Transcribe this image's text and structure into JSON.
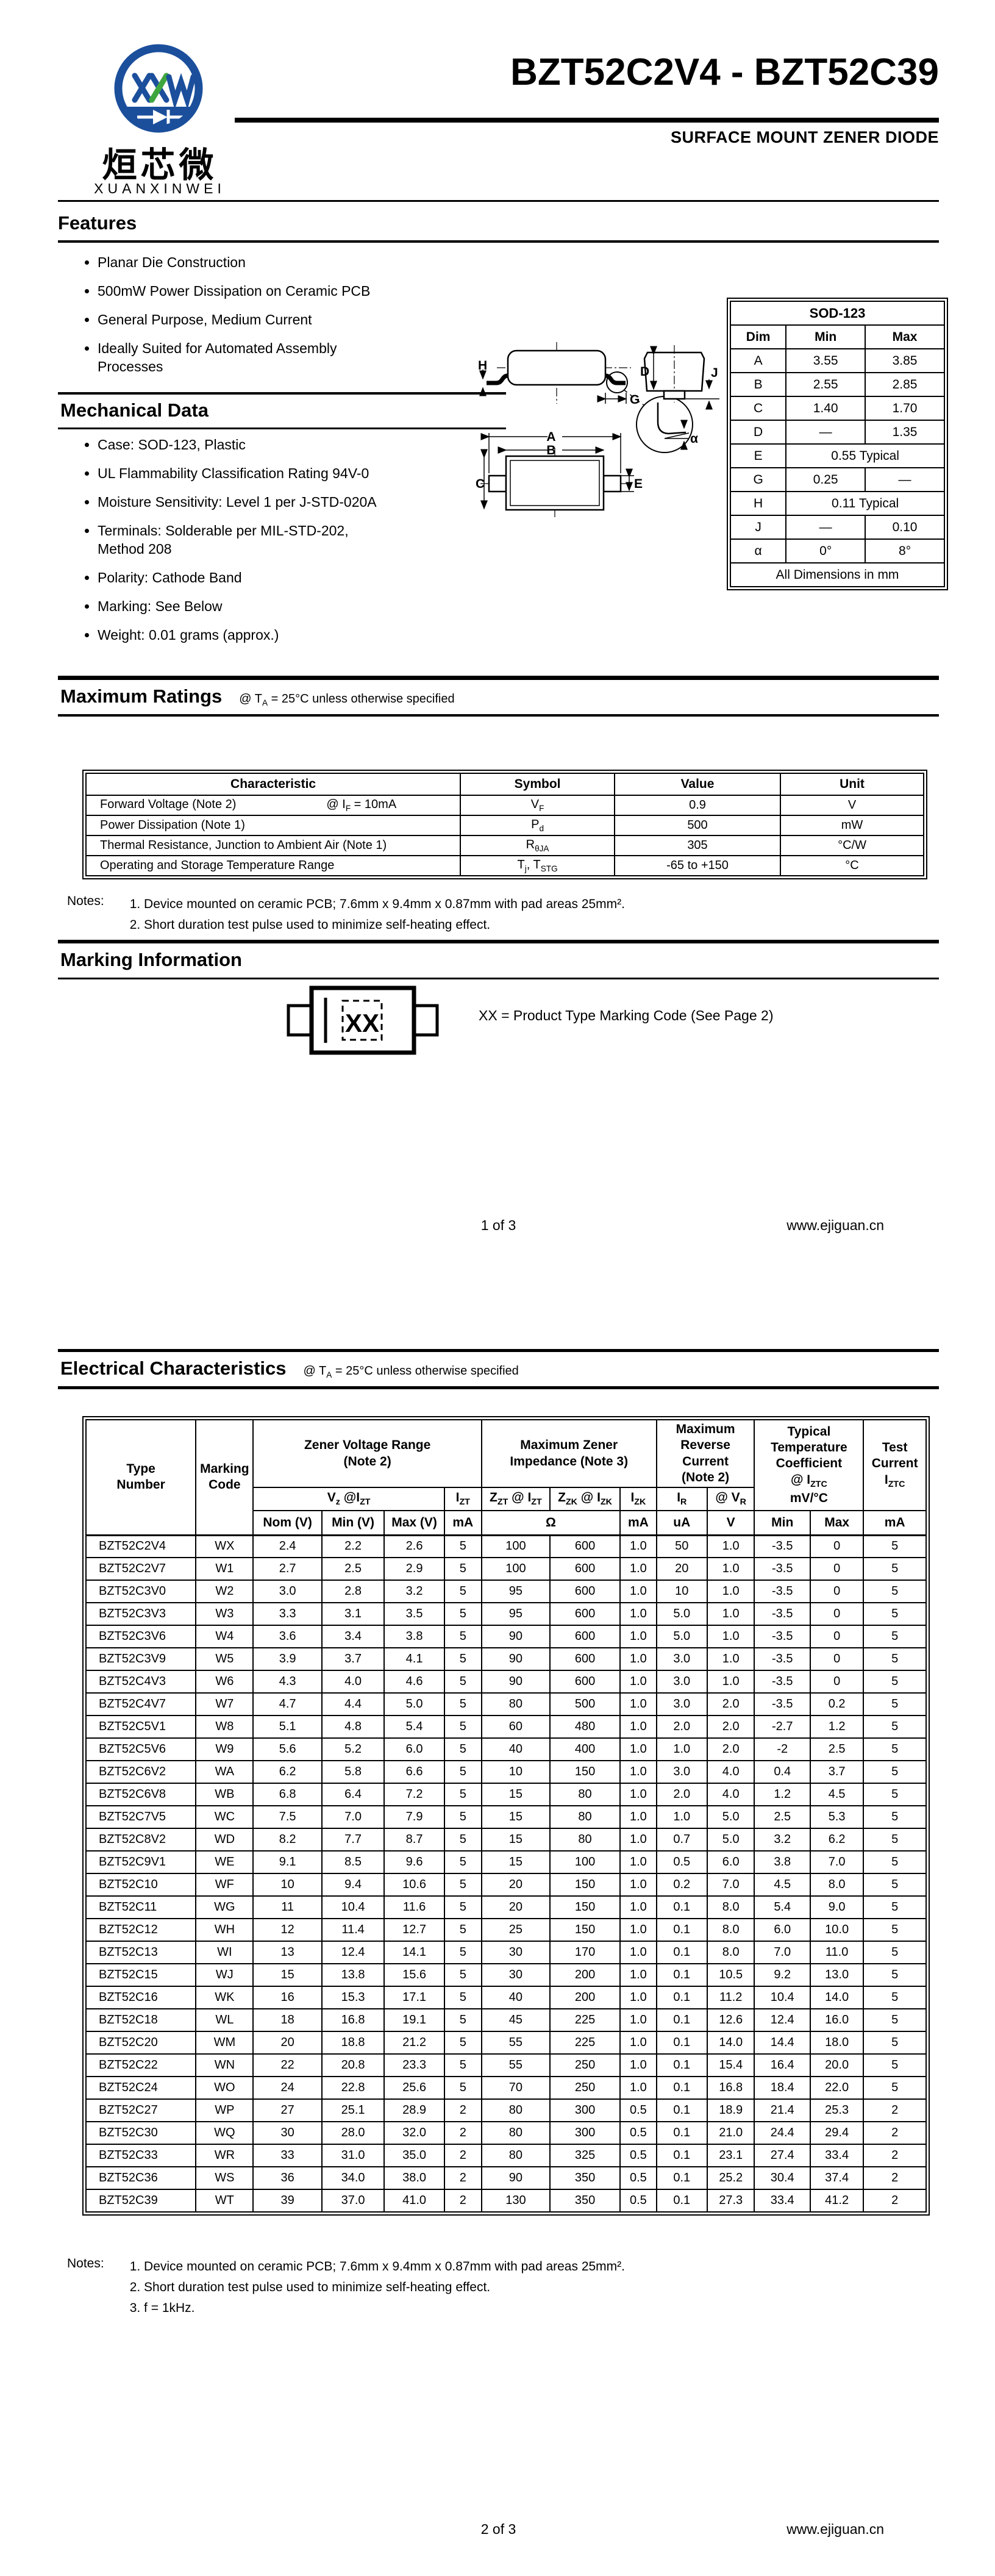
{
  "doc": {
    "title": "BZT52C2V4 - BZT52C39",
    "subtitle": "SURFACE MOUNT ZENER DIODE",
    "logo": {
      "chinese": "烜芯微",
      "latin": "XUANXINWEI",
      "blue": "#1b4f9c",
      "green": "#3fa63f"
    },
    "condition": [
      {
        "t": "@ T"
      },
      {
        "t": "A",
        "s": 1
      },
      {
        "t": " = 25°C unless otherwise specified"
      }
    ]
  },
  "features": {
    "heading": "Features",
    "items": [
      [
        "Planar Die Construction"
      ],
      [
        "500mW Power Dissipation on Ceramic PCB"
      ],
      [
        "General Purpose, Medium Current"
      ],
      [
        "Ideally Suited for Automated Assembly",
        "Processes"
      ]
    ]
  },
  "mechanical": {
    "heading": "Mechanical Data",
    "items": [
      [
        "Case: SOD-123, Plastic"
      ],
      [
        "UL Flammability Classification Rating 94V-0"
      ],
      [
        "Moisture Sensitivity: Level 1 per J-STD-020A"
      ],
      [
        "Terminals: Solderable per MIL-STD-202,",
        "Method 208"
      ],
      [
        "Polarity: Cathode Band"
      ],
      [
        "Marking: See Below"
      ],
      [
        "Weight: 0.01 grams (approx.)"
      ]
    ]
  },
  "package": {
    "title": "SOD-123",
    "headers": [
      "Dim",
      "Min",
      "Max"
    ],
    "rows": [
      [
        "A",
        "3.55",
        "3.85"
      ],
      [
        "B",
        "2.55",
        "2.85"
      ],
      [
        "C",
        "1.40",
        "1.70"
      ],
      [
        "D",
        "—",
        "1.35"
      ],
      [
        "E",
        "0.55 Typical"
      ],
      [
        "G",
        "0.25",
        "—"
      ],
      [
        "H",
        "0.11 Typical"
      ],
      [
        "J",
        "—",
        "0.10"
      ],
      [
        "α",
        "0°",
        "8°"
      ]
    ],
    "footer": "All Dimensions in mm",
    "labels": {
      "a": "A",
      "b": "B",
      "c": "C",
      "d": "D",
      "e": "E",
      "g": "G",
      "h": "H",
      "j": "J",
      "alpha": "α"
    }
  },
  "max_ratings": {
    "heading": "Maximum Ratings",
    "headers": [
      "Characteristic",
      "Symbol",
      "Value",
      "Unit"
    ],
    "rows": [
      {
        "name": "Forward Voltage (Note 2)",
        "cond": [
          {
            "t": "@ I"
          },
          {
            "t": "F",
            "s": 1
          },
          {
            "t": " = 10mA"
          }
        ],
        "sym": [
          {
            "t": "V"
          },
          {
            "t": "F",
            "s": 1
          }
        ],
        "value": "0.9",
        "unit": "V"
      },
      {
        "name": "Power Dissipation (Note 1)",
        "cond": [],
        "sym": [
          {
            "t": "P"
          },
          {
            "t": "d",
            "s": 1
          }
        ],
        "value": "500",
        "unit": "mW"
      },
      {
        "name": "Thermal Resistance, Junction to Ambient Air (Note 1)",
        "cond": [],
        "sym": [
          {
            "t": "R"
          },
          {
            "t": "θJA",
            "s": 1
          }
        ],
        "value": "305",
        "unit": "°C/W"
      },
      {
        "name": "Operating and Storage Temperature Range",
        "cond": [],
        "sym": [
          {
            "t": "T"
          },
          {
            "t": "j",
            "s": 1
          },
          {
            "t": ", T"
          },
          {
            "t": "STG",
            "s": 1
          }
        ],
        "value": "-65 to +150",
        "unit": "°C"
      }
    ],
    "notes_label": "Notes:",
    "notes": [
      "1. Device mounted on ceramic PCB; 7.6mm x 9.4mm x 0.87mm with pad areas 25mm².",
      "2. Short duration test pulse used to minimize self-heating effect."
    ]
  },
  "marking": {
    "heading": "Marking Information",
    "code": "XX",
    "legend": "XX = Product Type Marking Code (See Page 2)"
  },
  "electrical": {
    "heading": "Electrical Characteristics",
    "header": {
      "type_number": [
        {
          "t": "Type"
        },
        {
          "br": 1
        },
        {
          "t": "Number"
        }
      ],
      "marking_code": [
        {
          "t": "Marking"
        },
        {
          "br": 1
        },
        {
          "t": "Code"
        }
      ],
      "zener_range": [
        {
          "t": "Zener Voltage Range"
        },
        {
          "br": 1
        },
        {
          "t": "(Note 2)"
        }
      ],
      "impedance": [
        {
          "t": "Maximum Zener"
        },
        {
          "br": 1
        },
        {
          "t": "Impedance (Note 3)"
        }
      ],
      "reverse": [
        {
          "t": "Maximum"
        },
        {
          "br": 1
        },
        {
          "t": "Reverse"
        },
        {
          "br": 1
        },
        {
          "t": "Current"
        },
        {
          "br": 1
        },
        {
          "t": "(Note 2)"
        }
      ],
      "temp_coeff": [
        {
          "t": "Typical"
        },
        {
          "br": 1
        },
        {
          "t": "Temperature"
        },
        {
          "br": 1
        },
        {
          "t": "Coefficient"
        },
        {
          "br": 1
        },
        {
          "t": "@ I"
        },
        {
          "t": "ZTC",
          "s": 1
        },
        {
          "br": 1
        },
        {
          "t": "mV/°C"
        }
      ],
      "test_current": [
        {
          "t": "Test"
        },
        {
          "br": 1
        },
        {
          "t": "Current"
        },
        {
          "br": 1
        },
        {
          "t": "I"
        },
        {
          "t": "ZTC",
          "s": 1
        }
      ],
      "vz": [
        {
          "t": "V"
        },
        {
          "t": "z",
          "s": 1
        },
        {
          "t": " @I"
        },
        {
          "t": "ZT",
          "s": 1
        }
      ],
      "izt": [
        {
          "t": "I"
        },
        {
          "t": "ZT",
          "s": 1
        }
      ],
      "zzt": [
        {
          "t": "Z"
        },
        {
          "t": "ZT",
          "s": 1
        },
        {
          "t": " @ I"
        },
        {
          "t": "ZT",
          "s": 1
        }
      ],
      "zzk": [
        {
          "t": "Z"
        },
        {
          "t": "ZK",
          "s": 1
        },
        {
          "t": " @ I"
        },
        {
          "t": "ZK",
          "s": 1
        }
      ],
      "izk": [
        {
          "t": "I"
        },
        {
          "t": "ZK",
          "s": 1
        }
      ],
      "ir": [
        {
          "t": "I"
        },
        {
          "t": "R",
          "s": 1
        }
      ],
      "vr": [
        {
          "t": "@ V"
        },
        {
          "t": "R",
          "s": 1
        }
      ],
      "units": [
        "Nom (V)",
        "Min (V)",
        "Max (V)",
        "mA",
        "Ω",
        "mA",
        "uA",
        "V",
        "Min",
        "Max",
        "mA"
      ]
    },
    "rows": [
      [
        "BZT52C2V4",
        "WX",
        "2.4",
        "2.2",
        "2.6",
        "5",
        "100",
        "600",
        "1.0",
        "50",
        "1.0",
        "-3.5",
        "0",
        "5"
      ],
      [
        "BZT52C2V7",
        "W1",
        "2.7",
        "2.5",
        "2.9",
        "5",
        "100",
        "600",
        "1.0",
        "20",
        "1.0",
        "-3.5",
        "0",
        "5"
      ],
      [
        "BZT52C3V0",
        "W2",
        "3.0",
        "2.8",
        "3.2",
        "5",
        "95",
        "600",
        "1.0",
        "10",
        "1.0",
        "-3.5",
        "0",
        "5"
      ],
      [
        "BZT52C3V3",
        "W3",
        "3.3",
        "3.1",
        "3.5",
        "5",
        "95",
        "600",
        "1.0",
        "5.0",
        "1.0",
        "-3.5",
        "0",
        "5"
      ],
      [
        "BZT52C3V6",
        "W4",
        "3.6",
        "3.4",
        "3.8",
        "5",
        "90",
        "600",
        "1.0",
        "5.0",
        "1.0",
        "-3.5",
        "0",
        "5"
      ],
      [
        "BZT52C3V9",
        "W5",
        "3.9",
        "3.7",
        "4.1",
        "5",
        "90",
        "600",
        "1.0",
        "3.0",
        "1.0",
        "-3.5",
        "0",
        "5"
      ],
      [
        "BZT52C4V3",
        "W6",
        "4.3",
        "4.0",
        "4.6",
        "5",
        "90",
        "600",
        "1.0",
        "3.0",
        "1.0",
        "-3.5",
        "0",
        "5"
      ],
      [
        "BZT52C4V7",
        "W7",
        "4.7",
        "4.4",
        "5.0",
        "5",
        "80",
        "500",
        "1.0",
        "3.0",
        "2.0",
        "-3.5",
        "0.2",
        "5"
      ],
      [
        "BZT52C5V1",
        "W8",
        "5.1",
        "4.8",
        "5.4",
        "5",
        "60",
        "480",
        "1.0",
        "2.0",
        "2.0",
        "-2.7",
        "1.2",
        "5"
      ],
      [
        "BZT52C5V6",
        "W9",
        "5.6",
        "5.2",
        "6.0",
        "5",
        "40",
        "400",
        "1.0",
        "1.0",
        "2.0",
        "-2",
        "2.5",
        "5"
      ],
      [
        "BZT52C6V2",
        "WA",
        "6.2",
        "5.8",
        "6.6",
        "5",
        "10",
        "150",
        "1.0",
        "3.0",
        "4.0",
        "0.4",
        "3.7",
        "5"
      ],
      [
        "BZT52C6V8",
        "WB",
        "6.8",
        "6.4",
        "7.2",
        "5",
        "15",
        "80",
        "1.0",
        "2.0",
        "4.0",
        "1.2",
        "4.5",
        "5"
      ],
      [
        "BZT52C7V5",
        "WC",
        "7.5",
        "7.0",
        "7.9",
        "5",
        "15",
        "80",
        "1.0",
        "1.0",
        "5.0",
        "2.5",
        "5.3",
        "5"
      ],
      [
        "BZT52C8V2",
        "WD",
        "8.2",
        "7.7",
        "8.7",
        "5",
        "15",
        "80",
        "1.0",
        "0.7",
        "5.0",
        "3.2",
        "6.2",
        "5"
      ],
      [
        "BZT52C9V1",
        "WE",
        "9.1",
        "8.5",
        "9.6",
        "5",
        "15",
        "100",
        "1.0",
        "0.5",
        "6.0",
        "3.8",
        "7.0",
        "5"
      ],
      [
        "BZT52C10",
        "WF",
        "10",
        "9.4",
        "10.6",
        "5",
        "20",
        "150",
        "1.0",
        "0.2",
        "7.0",
        "4.5",
        "8.0",
        "5"
      ],
      [
        "BZT52C11",
        "WG",
        "11",
        "10.4",
        "11.6",
        "5",
        "20",
        "150",
        "1.0",
        "0.1",
        "8.0",
        "5.4",
        "9.0",
        "5"
      ],
      [
        "BZT52C12",
        "WH",
        "12",
        "11.4",
        "12.7",
        "5",
        "25",
        "150",
        "1.0",
        "0.1",
        "8.0",
        "6.0",
        "10.0",
        "5"
      ],
      [
        "BZT52C13",
        "WI",
        "13",
        "12.4",
        "14.1",
        "5",
        "30",
        "170",
        "1.0",
        "0.1",
        "8.0",
        "7.0",
        "11.0",
        "5"
      ],
      [
        "BZT52C15",
        "WJ",
        "15",
        "13.8",
        "15.6",
        "5",
        "30",
        "200",
        "1.0",
        "0.1",
        "10.5",
        "9.2",
        "13.0",
        "5"
      ],
      [
        "BZT52C16",
        "WK",
        "16",
        "15.3",
        "17.1",
        "5",
        "40",
        "200",
        "1.0",
        "0.1",
        "11.2",
        "10.4",
        "14.0",
        "5"
      ],
      [
        "BZT52C18",
        "WL",
        "18",
        "16.8",
        "19.1",
        "5",
        "45",
        "225",
        "1.0",
        "0.1",
        "12.6",
        "12.4",
        "16.0",
        "5"
      ],
      [
        "BZT52C20",
        "WM",
        "20",
        "18.8",
        "21.2",
        "5",
        "55",
        "225",
        "1.0",
        "0.1",
        "14.0",
        "14.4",
        "18.0",
        "5"
      ],
      [
        "BZT52C22",
        "WN",
        "22",
        "20.8",
        "23.3",
        "5",
        "55",
        "250",
        "1.0",
        "0.1",
        "15.4",
        "16.4",
        "20.0",
        "5"
      ],
      [
        "BZT52C24",
        "WO",
        "24",
        "22.8",
        "25.6",
        "5",
        "70",
        "250",
        "1.0",
        "0.1",
        "16.8",
        "18.4",
        "22.0",
        "5"
      ],
      [
        "BZT52C27",
        "WP",
        "27",
        "25.1",
        "28.9",
        "2",
        "80",
        "300",
        "0.5",
        "0.1",
        "18.9",
        "21.4",
        "25.3",
        "2"
      ],
      [
        "BZT52C30",
        "WQ",
        "30",
        "28.0",
        "32.0",
        "2",
        "80",
        "300",
        "0.5",
        "0.1",
        "21.0",
        "24.4",
        "29.4",
        "2"
      ],
      [
        "BZT52C33",
        "WR",
        "33",
        "31.0",
        "35.0",
        "2",
        "80",
        "325",
        "0.5",
        "0.1",
        "23.1",
        "27.4",
        "33.4",
        "2"
      ],
      [
        "BZT52C36",
        "WS",
        "36",
        "34.0",
        "38.0",
        "2",
        "90",
        "350",
        "0.5",
        "0.1",
        "25.2",
        "30.4",
        "37.4",
        "2"
      ],
      [
        "BZT52C39",
        "WT",
        "39",
        "37.0",
        "41.0",
        "2",
        "130",
        "350",
        "0.5",
        "0.1",
        "27.3",
        "33.4",
        "41.2",
        "2"
      ]
    ],
    "notes_label": "Notes:",
    "notes": [
      "1. Device mounted on ceramic PCB; 7.6mm x 9.4mm x 0.87mm with pad areas 25mm².",
      "2. Short duration test pulse used to minimize self-heating effect.",
      "3. f = 1kHz."
    ]
  },
  "footer": {
    "page1": "1 of 3",
    "page2": "2 of 3",
    "site": "www.ejiguan.cn"
  }
}
